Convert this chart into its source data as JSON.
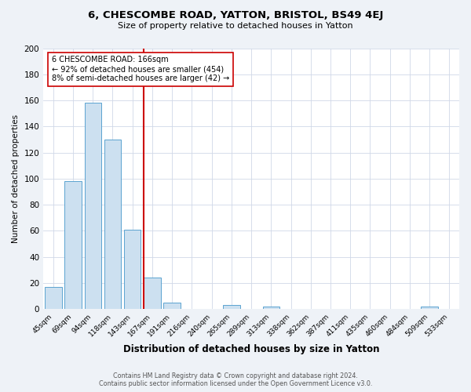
{
  "title": "6, CHESCOMBE ROAD, YATTON, BRISTOL, BS49 4EJ",
  "subtitle": "Size of property relative to detached houses in Yatton",
  "xlabel": "Distribution of detached houses by size in Yatton",
  "ylabel": "Number of detached properties",
  "bar_labels": [
    "45sqm",
    "69sqm",
    "94sqm",
    "118sqm",
    "143sqm",
    "167sqm",
    "191sqm",
    "216sqm",
    "240sqm",
    "265sqm",
    "289sqm",
    "313sqm",
    "338sqm",
    "362sqm",
    "387sqm",
    "411sqm",
    "435sqm",
    "460sqm",
    "484sqm",
    "509sqm",
    "533sqm"
  ],
  "bar_values": [
    17,
    98,
    158,
    130,
    61,
    24,
    5,
    0,
    0,
    3,
    0,
    2,
    0,
    0,
    0,
    0,
    0,
    0,
    0,
    2,
    0
  ],
  "bar_color": "#cce0f0",
  "bar_edgecolor": "#5ba3d0",
  "marker_label": "6 CHESCOMBE ROAD: 166sqm",
  "annotation_line1": "← 92% of detached houses are smaller (454)",
  "annotation_line2": "8% of semi-detached houses are larger (42) →",
  "marker_color": "#cc0000",
  "ylim": [
    0,
    200
  ],
  "yticks": [
    0,
    20,
    40,
    60,
    80,
    100,
    120,
    140,
    160,
    180,
    200
  ],
  "bg_color": "#eef2f7",
  "plot_bg_color": "#ffffff",
  "grid_color": "#d0d8e8",
  "footer_line1": "Contains HM Land Registry data © Crown copyright and database right 2024.",
  "footer_line2": "Contains public sector information licensed under the Open Government Licence v3.0."
}
